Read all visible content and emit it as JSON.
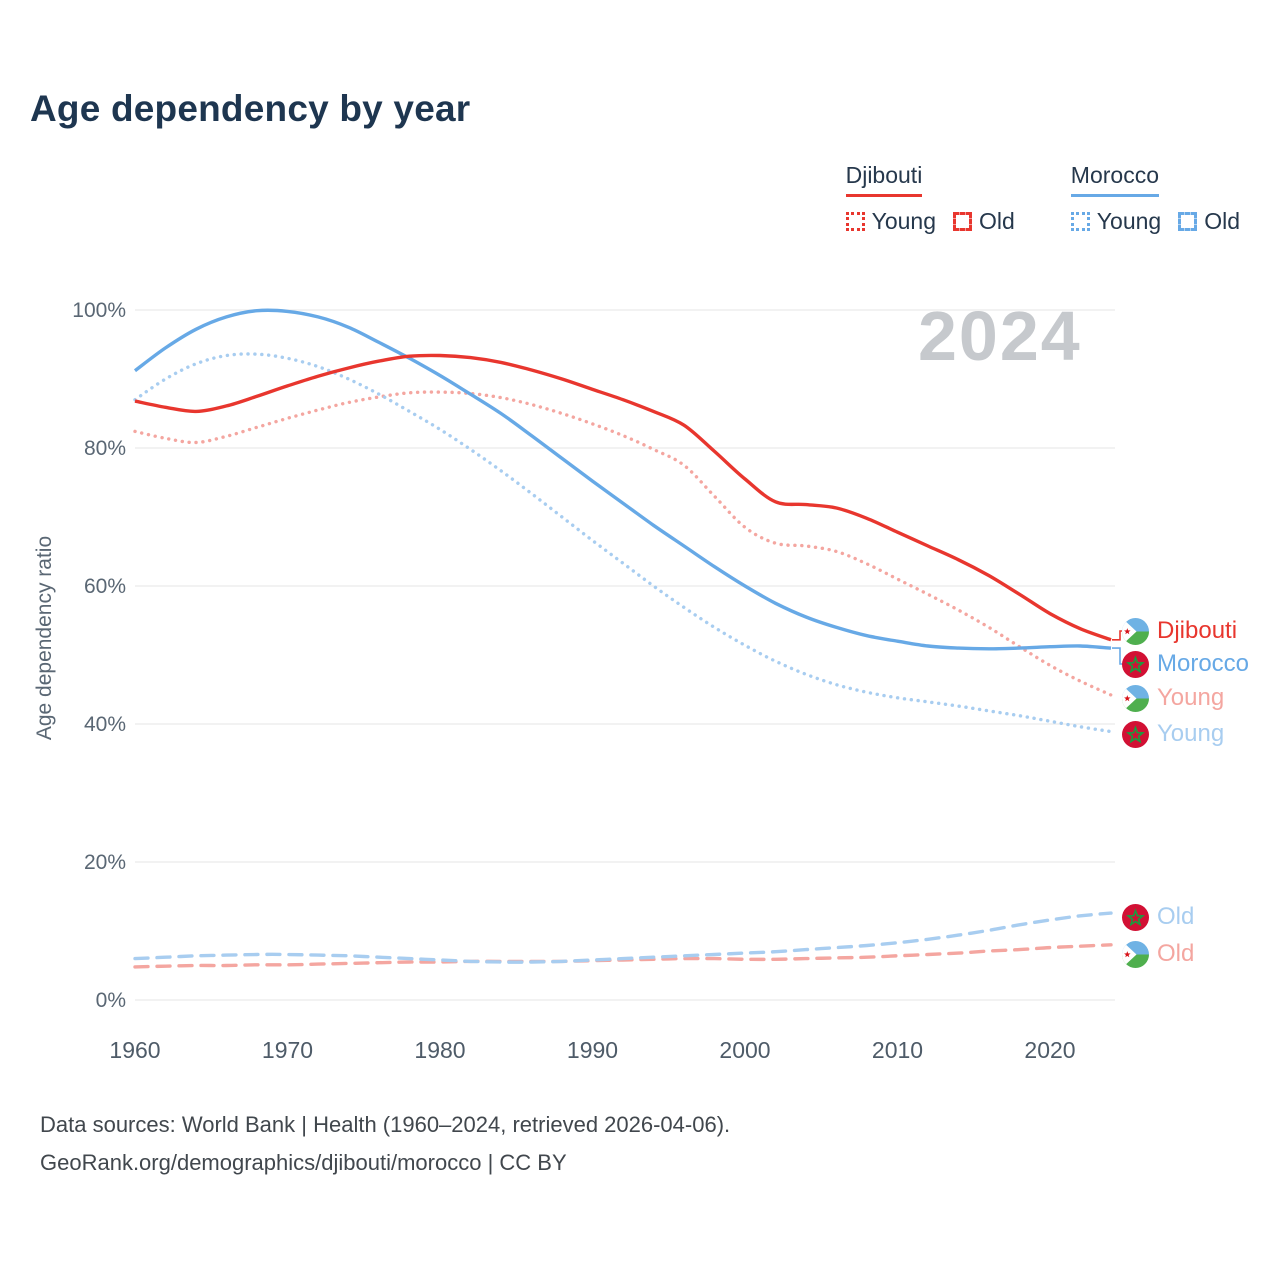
{
  "title": "Age dependency by year",
  "watermark": "2024",
  "ylabel": "Age dependency ratio",
  "legend": {
    "groups": [
      {
        "label": "Djibouti",
        "color": "#e8362e",
        "items": [
          {
            "label": "Young",
            "style": "dotted"
          },
          {
            "label": "Old",
            "style": "dashed"
          }
        ]
      },
      {
        "label": "Morocco",
        "color": "#67a9e6",
        "items": [
          {
            "label": "Young",
            "style": "dotted"
          },
          {
            "label": "Old",
            "style": "dashed"
          }
        ]
      }
    ]
  },
  "chart_data": {
    "type": "line",
    "title": "Age dependency by year",
    "xlabel": "",
    "ylabel": "Age dependency ratio",
    "ylim": [
      0,
      100
    ],
    "yticks": [
      0,
      20,
      40,
      60,
      80,
      100
    ],
    "ytick_labels": [
      "0%",
      "20%",
      "40%",
      "60%",
      "80%",
      "100%"
    ],
    "xticks": [
      1960,
      1970,
      1980,
      1990,
      2000,
      2010,
      2020
    ],
    "grid": "horizontal",
    "x": [
      1960,
      1962,
      1964,
      1966,
      1968,
      1970,
      1972,
      1974,
      1976,
      1978,
      1980,
      1982,
      1984,
      1986,
      1988,
      1990,
      1992,
      1994,
      1996,
      1998,
      2000,
      2002,
      2004,
      2006,
      2008,
      2010,
      2012,
      2014,
      2016,
      2018,
      2020,
      2022,
      2024
    ],
    "series": [
      {
        "name": "Djibouti young",
        "country": "Djibouti",
        "measure": "Young",
        "style": "dotted",
        "color": "#f4a6a0",
        "values": [
          82.4,
          81.4,
          80.8,
          81.7,
          83.0,
          84.3,
          85.5,
          86.6,
          87.4,
          88.0,
          88.1,
          87.9,
          87.3,
          86.3,
          85.0,
          83.5,
          81.8,
          79.8,
          77.5,
          73.0,
          68.5,
          66.2,
          65.8,
          65.0,
          63.2,
          61.0,
          58.8,
          56.5,
          54.0,
          51.2,
          48.5,
          46.2,
          44.2
        ]
      },
      {
        "name": "Morocco young",
        "country": "Morocco",
        "measure": "Young",
        "style": "dotted",
        "color": "#a8cdf0",
        "values": [
          87.0,
          90.0,
          92.2,
          93.4,
          93.6,
          93.0,
          91.8,
          90.0,
          87.8,
          85.3,
          82.7,
          79.8,
          76.7,
          73.4,
          70.0,
          66.6,
          63.3,
          60.0,
          56.9,
          54.0,
          51.4,
          49.1,
          47.2,
          45.7,
          44.6,
          43.8,
          43.2,
          42.6,
          41.9,
          41.2,
          40.4,
          39.6,
          38.9
        ]
      },
      {
        "name": "Djibouti old",
        "country": "Djibouti",
        "measure": "Old",
        "style": "dashed",
        "color": "#f4a6a0",
        "values": [
          4.8,
          4.9,
          5.0,
          5.0,
          5.1,
          5.1,
          5.2,
          5.3,
          5.4,
          5.5,
          5.5,
          5.6,
          5.6,
          5.6,
          5.6,
          5.7,
          5.8,
          5.9,
          6.0,
          6.0,
          5.9,
          5.9,
          6.0,
          6.1,
          6.2,
          6.4,
          6.6,
          6.8,
          7.1,
          7.3,
          7.6,
          7.8,
          8.0
        ]
      },
      {
        "name": "Morocco old",
        "country": "Morocco",
        "measure": "Old",
        "style": "dashed",
        "color": "#a8cdf0",
        "values": [
          6.0,
          6.2,
          6.4,
          6.5,
          6.6,
          6.6,
          6.5,
          6.4,
          6.2,
          6.0,
          5.8,
          5.6,
          5.5,
          5.5,
          5.6,
          5.8,
          6.0,
          6.2,
          6.4,
          6.6,
          6.8,
          7.0,
          7.3,
          7.6,
          7.9,
          8.3,
          8.8,
          9.4,
          10.1,
          10.9,
          11.6,
          12.2,
          12.6
        ]
      },
      {
        "name": "Morocco total",
        "country": "Morocco",
        "measure": "Total",
        "style": "solid",
        "color": "#67a9e6",
        "values": [
          91.2,
          94.5,
          97.2,
          99.0,
          99.9,
          99.8,
          99.0,
          97.5,
          95.3,
          93.0,
          90.5,
          87.8,
          85.0,
          81.8,
          78.5,
          75.2,
          72.0,
          68.8,
          65.8,
          62.8,
          60.0,
          57.5,
          55.5,
          54.0,
          52.8,
          52.0,
          51.3,
          51.0,
          50.9,
          51.0,
          51.2,
          51.3,
          51.0
        ]
      },
      {
        "name": "Djibouti total",
        "country": "Djibouti",
        "measure": "Total",
        "style": "solid",
        "color": "#e8362e",
        "values": [
          86.8,
          85.9,
          85.3,
          86.1,
          87.5,
          89.0,
          90.4,
          91.6,
          92.6,
          93.3,
          93.4,
          93.1,
          92.4,
          91.3,
          90.0,
          88.5,
          87.0,
          85.3,
          83.3,
          79.5,
          75.5,
          72.2,
          71.8,
          71.3,
          69.8,
          67.8,
          65.8,
          63.8,
          61.5,
          58.8,
          56.0,
          53.8,
          52.2
        ]
      }
    ]
  },
  "end_labels": [
    {
      "id": "djibouti-total",
      "label": "Djibouti",
      "color": "#e8362e",
      "flag": "djibouti"
    },
    {
      "id": "morocco-total",
      "label": "Morocco",
      "color": "#67a9e6",
      "flag": "morocco"
    },
    {
      "id": "djibouti-young",
      "label": "Young",
      "color": "#f4a6a0",
      "flag": "djibouti"
    },
    {
      "id": "morocco-young",
      "label": "Young",
      "color": "#a8cdf0",
      "flag": "morocco"
    },
    {
      "id": "morocco-old",
      "label": "Old",
      "color": "#a8cdf0",
      "flag": "morocco"
    },
    {
      "id": "djibouti-old",
      "label": "Old",
      "color": "#f4a6a0",
      "flag": "djibouti"
    }
  ],
  "footer": {
    "line1": "Data sources: World Bank | Health (1960–2024, retrieved 2026-04-06).",
    "line2": "GeoRank.org/demographics/djibouti/morocco | CC BY"
  }
}
